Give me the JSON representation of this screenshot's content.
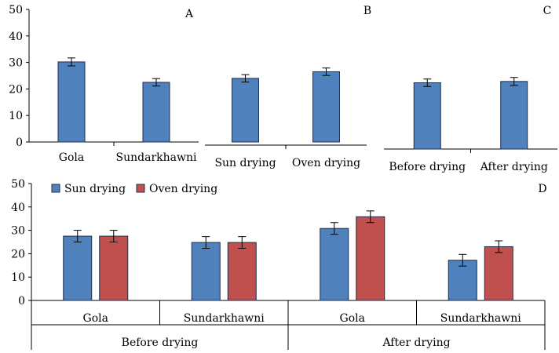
{
  "colors": {
    "sun": "#4F81BD",
    "oven": "#C0504D",
    "bar_border": "#1F2F4F"
  },
  "chart_data": [
    {
      "id": "A",
      "type": "bar",
      "panel_label": "A",
      "categories": [
        "Gola",
        "Sundarkhawni"
      ],
      "values": [
        30.2,
        22.5
      ],
      "errors": [
        1.5,
        1.4
      ],
      "ylim": [
        0,
        50
      ],
      "yticks": [
        "0",
        "10",
        "20",
        "30",
        "40",
        "50"
      ]
    },
    {
      "id": "B",
      "type": "bar",
      "panel_label": "B",
      "categories": [
        "Sun drying",
        "Oven drying"
      ],
      "values": [
        24.0,
        26.5
      ],
      "errors": [
        1.4,
        1.4
      ],
      "ylim": [
        0,
        50
      ]
    },
    {
      "id": "C",
      "type": "bar",
      "panel_label": "C",
      "categories": [
        "Before drying",
        "After drying"
      ],
      "values": [
        25.0,
        25.5
      ],
      "errors": [
        1.4,
        1.5
      ],
      "ylim": [
        0,
        50
      ]
    },
    {
      "id": "D",
      "type": "bar",
      "panel_label": "D",
      "groups": [
        "Before drying",
        "After drying"
      ],
      "categories": [
        "Gola",
        "Sundarkhawni",
        "Gola",
        "Sundarkhawni"
      ],
      "series": [
        {
          "name": "Sun drying",
          "values": [
            27.5,
            24.8,
            30.8,
            17.2
          ],
          "errors": [
            2.5,
            2.5,
            2.5,
            2.5
          ]
        },
        {
          "name": "Oven drying",
          "values": [
            27.5,
            24.8,
            35.8,
            23.0
          ],
          "errors": [
            2.5,
            2.5,
            2.5,
            2.5
          ]
        }
      ],
      "ylim": [
        0,
        50
      ],
      "yticks": [
        "0",
        "10",
        "20",
        "30",
        "40",
        "50"
      ]
    }
  ]
}
